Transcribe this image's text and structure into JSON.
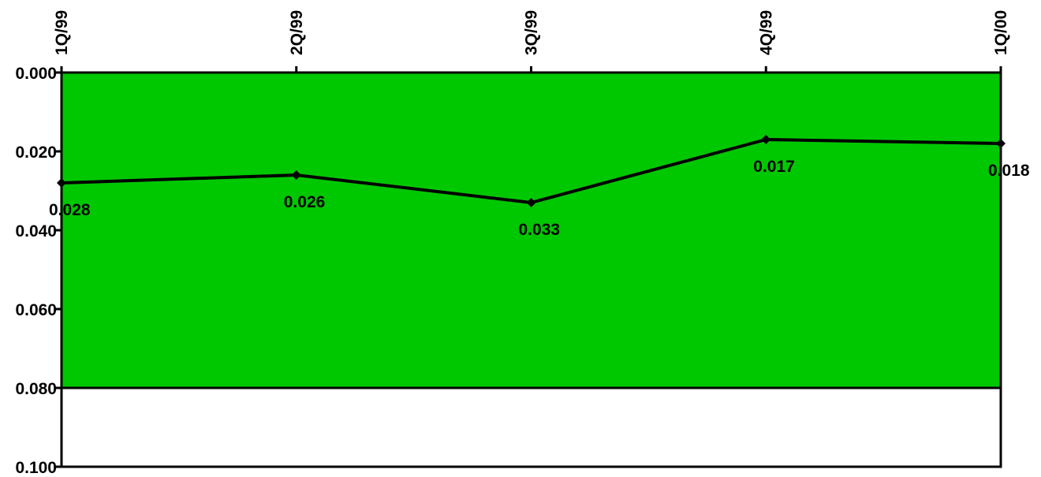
{
  "chart_data": {
    "type": "line",
    "title": "",
    "xlabel": "",
    "ylabel": "",
    "categories": [
      "1Q/99",
      "2Q/99",
      "3Q/99",
      "4Q/99",
      "1Q/00"
    ],
    "series": [
      {
        "values": [
          0.028,
          0.026,
          0.033,
          0.017,
          0.018
        ],
        "labels": [
          "0.028",
          "0.026",
          "0.033",
          "0.017",
          "0.018"
        ]
      }
    ],
    "y_axis": {
      "reversed": true,
      "range": [
        0.0,
        0.1
      ],
      "ticks": [
        0.0,
        0.02,
        0.04,
        0.06,
        0.08,
        0.1
      ],
      "tick_labels": [
        "0.000",
        "0.020",
        "0.040",
        "0.060",
        "0.080",
        "0.100"
      ]
    },
    "x_axis": {
      "position": "top",
      "label_orientation": "vertical"
    },
    "bands": [
      {
        "from": 0.0,
        "to": 0.08,
        "color": "#00c800"
      },
      {
        "from": 0.08,
        "to": 0.1,
        "color": "#ffffff"
      }
    ],
    "line_color": "#000000",
    "grid": false,
    "legend": "none"
  }
}
